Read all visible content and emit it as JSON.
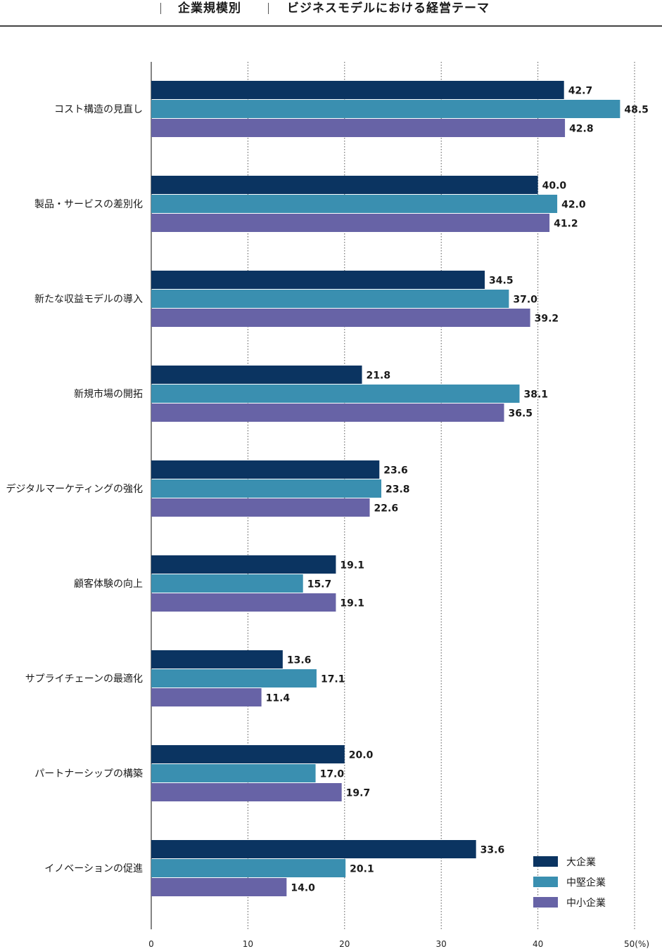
{
  "header": {
    "left_title": "企業規模別",
    "right_title": "ビジネスモデルにおける経営テーマ"
  },
  "colors": {
    "large": "#0b3461",
    "mid": "#3a8fb0",
    "small": "#6763a6",
    "grid": "#555555",
    "axis": "#333333"
  },
  "chart_data": {
    "type": "bar",
    "orientation": "horizontal",
    "title": "ビジネスモデルにおける経営テーマ",
    "categories": [
      "コスト構造の見直し",
      "製品・サービスの差別化",
      "新たな収益モデルの導入",
      "新規市場の開拓",
      "デジタルマーケティングの強化",
      "顧客体験の向上",
      "サプライチェーンの最適化",
      "パートナーシップの構築",
      "イノベーションの促進"
    ],
    "series": [
      {
        "name": "大企業",
        "color_key": "large",
        "values": [
          42.7,
          40.0,
          34.5,
          21.8,
          23.6,
          19.1,
          13.6,
          20.0,
          33.6
        ],
        "labels": [
          "42.7",
          "40.0",
          "34.5",
          "21.8",
          "23.6",
          "19.1",
          "13.6",
          "20.0",
          "33.6"
        ]
      },
      {
        "name": "中堅企業",
        "color_key": "mid",
        "values": [
          48.5,
          42.0,
          37.0,
          38.1,
          23.8,
          15.7,
          17.1,
          17.0,
          20.1
        ],
        "labels": [
          "48.5",
          "42.0",
          "37.0",
          "38.1",
          "23.8",
          "15.7",
          "17.1",
          "17.0",
          "20.1"
        ]
      },
      {
        "name": "中小企業",
        "color_key": "small",
        "values": [
          42.8,
          41.2,
          39.2,
          36.5,
          22.6,
          19.1,
          11.4,
          19.7,
          14.0
        ],
        "labels": [
          "42.8",
          "41.2",
          "39.2",
          "36.5",
          "22.6",
          "19.1",
          "11.4",
          "19.7",
          "14.0"
        ]
      }
    ],
    "xlim": [
      0,
      50
    ],
    "xticks": [
      "0",
      "10",
      "20",
      "30",
      "40",
      "50(%)"
    ],
    "xtick_values": [
      0,
      10,
      20,
      30,
      40,
      50
    ],
    "grid": "dotted vertical",
    "legend_position": "bottom-right"
  }
}
